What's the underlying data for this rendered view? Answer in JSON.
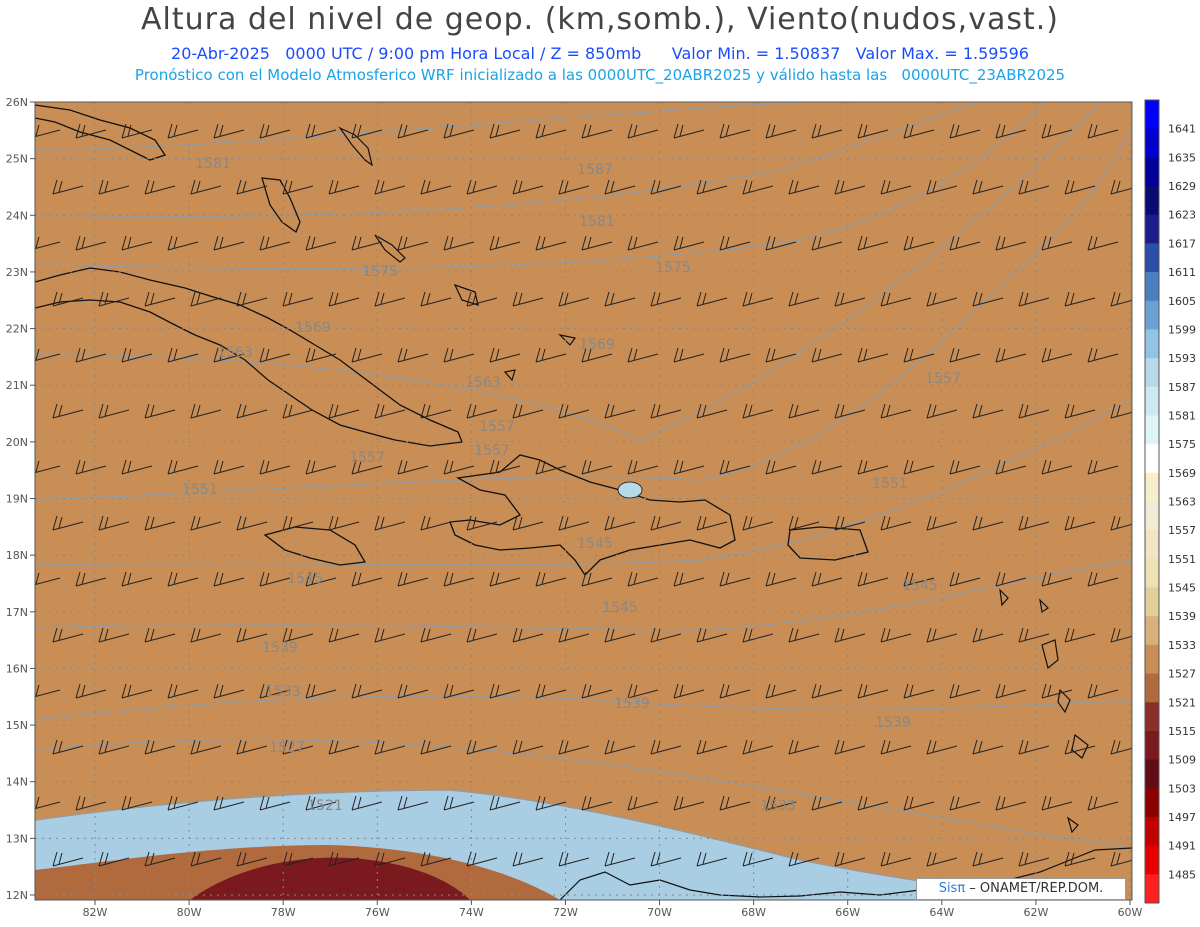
{
  "header": {
    "title": "Altura del nivel de geop. (km,somb.), Viento(nudos,vast.)",
    "line1": "20-Abr-2025   0000 UTC / 9:00 pm Hora Local / Z = 850mb      Valor Min. = 1.50837   Valor Max. = 1.59596",
    "line2": "Pronóstico con el Modelo Atmosferico WRF inicializado a las 0000UTC_20ABR2025 y válido hasta las   0000UTC_23ABR2025"
  },
  "map": {
    "lat_labels": [
      "26N",
      "25N",
      "24N",
      "23N",
      "22N",
      "21N",
      "20N",
      "19N",
      "18N",
      "17N",
      "16N",
      "15N",
      "14N",
      "13N",
      "12N"
    ],
    "lon_labels": [
      "82W",
      "80W",
      "78W",
      "76W",
      "74W",
      "72W",
      "70W",
      "68W",
      "66W",
      "64W",
      "62W",
      "60W"
    ],
    "contour_labels": [
      "1587",
      "1581",
      "1581",
      "1575",
      "1575",
      "1569",
      "1569",
      "1563",
      "1563",
      "1557",
      "1557",
      "1557",
      "1551",
      "1551",
      "1557",
      "1545",
      "1545",
      "1545",
      "1545",
      "1539",
      "1539",
      "1539",
      "1533",
      "1533",
      "1527",
      "1521"
    ]
  },
  "colorbar": {
    "labels": [
      "1641",
      "1635",
      "1629",
      "1623",
      "1617",
      "1611",
      "1605",
      "1599",
      "1593",
      "1587",
      "1581",
      "1575",
      "1569",
      "1563",
      "1557",
      "1551",
      "1545",
      "1539",
      "1533",
      "1527",
      "1521",
      "1515",
      "1509",
      "1503",
      "1497",
      "1491",
      "1485"
    ],
    "colors": [
      "#0000ff",
      "#0000cc",
      "#000099",
      "#0a0a70",
      "#1c1c8c",
      "#2b4fa6",
      "#4a7fc0",
      "#6aa2d4",
      "#93c3e2",
      "#b6daea",
      "#cde9f1",
      "#def4f9",
      "#ffffff",
      "#f7efcc",
      "#f3ead5",
      "#f0e4c2",
      "#ece0b4",
      "#e4cf9b",
      "#d8b07c",
      "#c98e55",
      "#b06a3e",
      "#8b3028",
      "#7a1a1f",
      "#620c18",
      "#8c0000",
      "#c10000",
      "#e60000",
      "#ff2020"
    ]
  },
  "credit": {
    "sis": "Sisπ",
    "rest": " – ONAMET/REP.DOM."
  },
  "colors": {
    "title": "#444444",
    "line1": "#1a4cff",
    "line2": "#1aa3e8",
    "contour": "#999999"
  }
}
